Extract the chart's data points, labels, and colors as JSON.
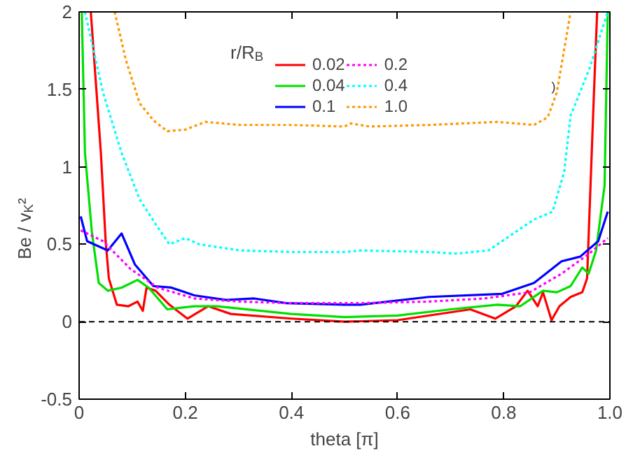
{
  "chart_data": {
    "type": "line",
    "xlabel": "theta [π]",
    "ylabel": "Be / v$_{K}$²",
    "legend_title": "r/R$_{B}$",
    "legend": "top",
    "xlim": [
      0,
      1
    ],
    "ylim": [
      -0.5,
      2
    ],
    "xticks": [
      0,
      0.2,
      0.4,
      0.6,
      0.8,
      {
        "value": 1,
        "label": "1.0"
      }
    ],
    "yticks": [
      -0.5,
      0,
      0.5,
      1,
      1.5,
      2
    ],
    "grid": false,
    "ref_lines": [
      {
        "axis": "y",
        "value": 0,
        "color": "#000000",
        "line_style": "dashed"
      }
    ],
    "annotations": [
      {
        "text": ")",
        "x": 0.89,
        "y": 1.47
      }
    ],
    "series": [
      {
        "name": "0.02",
        "color": "#ff0000",
        "line_style": "solid",
        "x": [
          0.022,
          0.041,
          0.05,
          0.056,
          0.071,
          0.093,
          0.11,
          0.12,
          0.127,
          0.144,
          0.17,
          0.204,
          0.243,
          0.286,
          0.4,
          0.5,
          0.6,
          0.737,
          0.784,
          0.823,
          0.845,
          0.864,
          0.874,
          0.89,
          0.905,
          0.926,
          0.948,
          0.957,
          0.97,
          0.976
        ],
        "values": [
          2,
          1.09,
          0.52,
          0.28,
          0.11,
          0.1,
          0.13,
          0.07,
          0.22,
          0.2,
          0.11,
          0.02,
          0.1,
          0.05,
          0.02,
          0.0,
          0.01,
          0.08,
          0.02,
          0.1,
          0.2,
          0.1,
          0.19,
          0.01,
          0.1,
          0.16,
          0.19,
          0.28,
          1.48,
          2
        ]
      },
      {
        "name": "0.04",
        "color": "#00e000",
        "line_style": "solid",
        "x": [
          0.005,
          0.011,
          0.024,
          0.037,
          0.054,
          0.08,
          0.11,
          0.131,
          0.166,
          0.217,
          0.26,
          0.4,
          0.5,
          0.6,
          0.7,
          0.788,
          0.831,
          0.874,
          0.9,
          0.926,
          0.948,
          0.96,
          0.974,
          0.99,
          0.996
        ],
        "values": [
          2,
          1.09,
          0.58,
          0.25,
          0.2,
          0.22,
          0.27,
          0.22,
          0.08,
          0.1,
          0.1,
          0.05,
          0.03,
          0.04,
          0.08,
          0.11,
          0.1,
          0.2,
          0.19,
          0.23,
          0.35,
          0.31,
          0.46,
          0.88,
          2
        ]
      },
      {
        "name": "0.1",
        "color": "#0000ff",
        "line_style": "solid",
        "x": [
          0.003,
          0.015,
          0.054,
          0.08,
          0.105,
          0.14,
          0.174,
          0.217,
          0.277,
          0.33,
          0.39,
          0.5,
          0.53,
          0.659,
          0.797,
          0.857,
          0.909,
          0.944,
          0.978,
          0.996
        ],
        "values": [
          0.68,
          0.52,
          0.46,
          0.57,
          0.37,
          0.23,
          0.22,
          0.17,
          0.14,
          0.15,
          0.12,
          0.11,
          0.11,
          0.16,
          0.18,
          0.25,
          0.39,
          0.42,
          0.52,
          0.71
        ]
      },
      {
        "name": "0.2",
        "color": "#ff00ff",
        "line_style": "dotted",
        "x": [
          0.003,
          0.045,
          0.097,
          0.148,
          0.217,
          0.303,
          0.4,
          0.5,
          0.53,
          0.659,
          0.763,
          0.849,
          0.909,
          0.961,
          0.996
        ],
        "values": [
          0.59,
          0.52,
          0.34,
          0.22,
          0.15,
          0.13,
          0.12,
          0.12,
          0.12,
          0.13,
          0.15,
          0.19,
          0.31,
          0.44,
          0.54
        ]
      },
      {
        "name": "0.4",
        "color": "#00ffff",
        "line_style": "dotted",
        "x": [
          0.011,
          0.045,
          0.08,
          0.114,
          0.148,
          0.17,
          0.2,
          0.226,
          0.303,
          0.4,
          0.5,
          0.53,
          0.659,
          0.711,
          0.771,
          0.857,
          0.892,
          0.914,
          0.926,
          0.961,
          0.996
        ],
        "values": [
          2,
          1.48,
          1.09,
          0.79,
          0.61,
          0.5,
          0.54,
          0.5,
          0.46,
          0.45,
          0.45,
          0.46,
          0.45,
          0.44,
          0.46,
          0.66,
          0.71,
          0.97,
          1.33,
          1.63,
          2
        ]
      },
      {
        "name": "1.0",
        "color": "#ff9900",
        "line_style": "dotted",
        "x": [
          0.067,
          0.088,
          0.114,
          0.14,
          0.166,
          0.2,
          0.238,
          0.303,
          0.4,
          0.5,
          0.512,
          0.547,
          0.659,
          0.788,
          0.857,
          0.883,
          0.9,
          0.926
        ],
        "values": [
          2,
          1.69,
          1.41,
          1.3,
          1.23,
          1.24,
          1.29,
          1.27,
          1.27,
          1.26,
          1.28,
          1.26,
          1.27,
          1.29,
          1.27,
          1.32,
          1.48,
          2
        ]
      }
    ]
  }
}
